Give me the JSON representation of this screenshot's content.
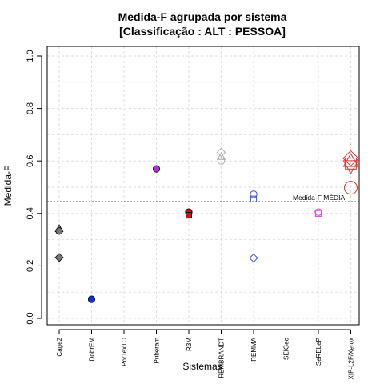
{
  "chart_data": {
    "type": "scatter",
    "title_line1": "Medida-F agrupada por sistema",
    "title_line2": "[Classificação : ALT : PESSOA]",
    "xlabel": "Sistemas",
    "ylabel": "Medida-F",
    "ylim": [
      0,
      1
    ],
    "yticks": [
      "0.0",
      "0.2",
      "0.4",
      "0.6",
      "0.8",
      "1.0"
    ],
    "categories": [
      "Cage2",
      "DobrEM",
      "PorTexTO",
      "Priberam",
      "R3M",
      "REMBRANDT",
      "REMMA",
      "SEIGeo",
      "SeRELeP",
      "XIP-L2F/Xerox"
    ],
    "mean_line": {
      "value": 0.445,
      "label": "Medida-F MÉDIA"
    },
    "grid": true,
    "points": [
      {
        "system": "Cage2",
        "y": 0.342,
        "shape": "triangle",
        "color": "#777777",
        "filled": true
      },
      {
        "system": "Cage2",
        "y": 0.333,
        "shape": "circle",
        "color": "#777777",
        "filled": true
      },
      {
        "system": "Cage2",
        "y": 0.232,
        "shape": "diamond",
        "color": "#777777",
        "filled": true
      },
      {
        "system": "DobrEM",
        "y": 0.073,
        "shape": "circle",
        "color": "#1030e0",
        "filled": true
      },
      {
        "system": "Priberam",
        "y": 0.57,
        "shape": "circle",
        "color": "#b030e0",
        "filled": true
      },
      {
        "system": "R3M",
        "y": 0.405,
        "shape": "circle",
        "color": "#d01010",
        "filled": true
      },
      {
        "system": "R3M",
        "y": 0.393,
        "shape": "square",
        "color": "#d01010",
        "filled": true
      },
      {
        "system": "REMBRANDT",
        "y": 0.633,
        "shape": "diamond",
        "color": "#aaaaaa",
        "filled": false
      },
      {
        "system": "REMBRANDT",
        "y": 0.617,
        "shape": "triangle",
        "color": "#aaaaaa",
        "filled": false
      },
      {
        "system": "REMBRANDT",
        "y": 0.6,
        "shape": "circle",
        "color": "#aaaaaa",
        "filled": false
      },
      {
        "system": "REMMA",
        "y": 0.473,
        "shape": "circle",
        "color": "#3050e0",
        "filled": false
      },
      {
        "system": "REMMA",
        "y": 0.455,
        "shape": "square",
        "color": "#3050e0",
        "filled": false
      },
      {
        "system": "REMMA",
        "y": 0.23,
        "shape": "diamond",
        "color": "#3050e0",
        "filled": false
      },
      {
        "system": "SeRELeP",
        "y": 0.405,
        "shape": "circle",
        "color": "#e040e0",
        "filled": false
      },
      {
        "system": "SeRELeP",
        "y": 0.4,
        "shape": "square",
        "color": "#e040e0",
        "filled": false
      },
      {
        "system": "XIP-L2F/Xerox",
        "y": 0.61,
        "shape": "diamond",
        "color": "#e03030",
        "filled": false
      },
      {
        "system": "XIP-L2F/Xerox",
        "y": 0.6,
        "shape": "triangle",
        "color": "#e03030",
        "filled": false
      },
      {
        "system": "XIP-L2F/Xerox",
        "y": 0.58,
        "shape": "triangle-down",
        "color": "#e03030",
        "filled": false
      },
      {
        "system": "XIP-L2F/Xerox",
        "y": 0.59,
        "shape": "square",
        "color": "#e03030",
        "filled": false
      },
      {
        "system": "XIP-L2F/Xerox",
        "y": 0.498,
        "shape": "circle",
        "color": "#e03030",
        "filled": false
      }
    ]
  }
}
